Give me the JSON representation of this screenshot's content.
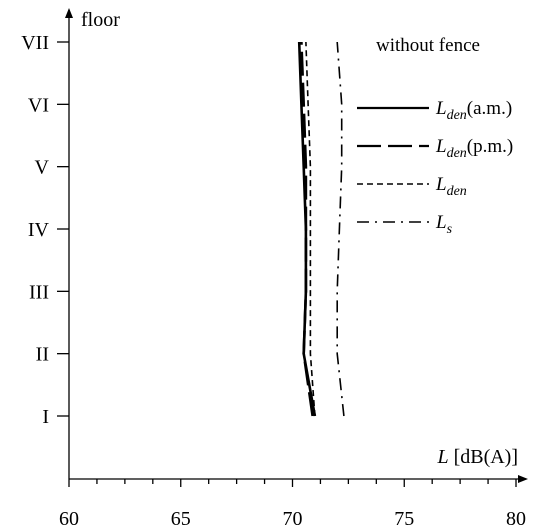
{
  "chart_data": {
    "type": "line",
    "title": "",
    "annotation": "without fence",
    "xlabel": {
      "symbol": "L",
      "unit": "[dB(A)]"
    },
    "ylabel": "floor",
    "xlim": [
      60,
      80
    ],
    "x_ticks": [
      60,
      65,
      70,
      75,
      80
    ],
    "x_minor_ticks": [
      61.25,
      62.5,
      63.75,
      66.25,
      67.5,
      68.75,
      71.25,
      72.5,
      73.75,
      76.25,
      77.5,
      78.75
    ],
    "y_categories": [
      "I",
      "II",
      "III",
      "IV",
      "V",
      "VI",
      "VII"
    ],
    "grid": false,
    "legend_position": "right",
    "series": [
      {
        "name": "Lden(a.m.)",
        "label_main": "L",
        "label_sub": "den",
        "label_suffix": "(a.m.)",
        "style": "solid",
        "points": [
          [
            71.0,
            "I"
          ],
          [
            70.5,
            "II"
          ],
          [
            70.6,
            "III"
          ],
          [
            70.6,
            "IV"
          ],
          [
            70.5,
            "V"
          ],
          [
            70.4,
            "VI"
          ],
          [
            70.3,
            "VII"
          ]
        ]
      },
      {
        "name": "Lden(p.m.)",
        "label_main": "L",
        "label_sub": "den",
        "label_suffix": "(p.m.)",
        "style": "longdash",
        "points": [
          [
            70.9,
            "I"
          ],
          [
            70.5,
            "II"
          ],
          [
            70.6,
            "III"
          ],
          [
            70.6,
            "IV"
          ],
          [
            70.6,
            "V"
          ],
          [
            70.5,
            "VI"
          ],
          [
            70.4,
            "VII"
          ]
        ]
      },
      {
        "name": "Lden",
        "label_main": "L",
        "label_sub": "den",
        "label_suffix": "",
        "style": "dash",
        "points": [
          [
            71.0,
            "I"
          ],
          [
            70.8,
            "II"
          ],
          [
            70.8,
            "III"
          ],
          [
            70.8,
            "IV"
          ],
          [
            70.8,
            "V"
          ],
          [
            70.7,
            "VI"
          ],
          [
            70.6,
            "VII"
          ]
        ]
      },
      {
        "name": "Ls",
        "label_main": "L",
        "label_sub": "s",
        "label_suffix": "",
        "style": "dashdot",
        "points": [
          [
            72.3,
            "I"
          ],
          [
            72.0,
            "II"
          ],
          [
            72.0,
            "III"
          ],
          [
            72.1,
            "IV"
          ],
          [
            72.2,
            "V"
          ],
          [
            72.2,
            "VI"
          ],
          [
            72.0,
            "VII"
          ]
        ]
      }
    ]
  }
}
